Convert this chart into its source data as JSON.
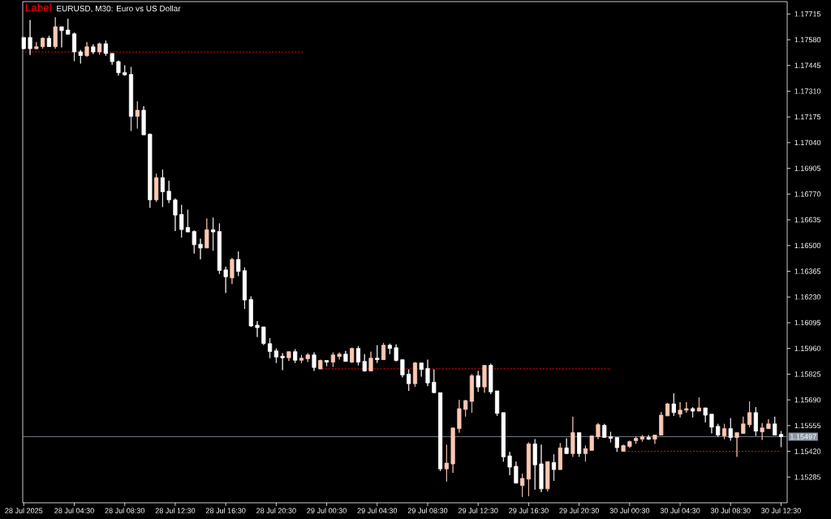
{
  "chart_data": {
    "type": "candlestick",
    "title": "EURUSD, M30: Euro vs US Dollar",
    "annotations": [
      "Label"
    ],
    "x": [
      "2025-07-28T00:30",
      "2025-07-28T01:00",
      "2025-07-28T01:30",
      "2025-07-28T02:00",
      "2025-07-28T02:30",
      "2025-07-28T03:00",
      "2025-07-28T03:30",
      "2025-07-28T04:00",
      "2025-07-28T04:30",
      "2025-07-28T05:00",
      "2025-07-28T05:30",
      "2025-07-28T06:00",
      "2025-07-28T06:30",
      "2025-07-28T07:00",
      "2025-07-28T07:30",
      "2025-07-28T08:00",
      "2025-07-28T08:30",
      "2025-07-28T09:00",
      "2025-07-28T09:30",
      "2025-07-28T10:00",
      "2025-07-28T10:30",
      "2025-07-28T11:00",
      "2025-07-28T11:30",
      "2025-07-28T12:00",
      "2025-07-28T12:30",
      "2025-07-28T13:00",
      "2025-07-28T13:30",
      "2025-07-28T14:00",
      "2025-07-28T14:30",
      "2025-07-28T15:00",
      "2025-07-28T15:30",
      "2025-07-28T16:00",
      "2025-07-28T16:30",
      "2025-07-28T17:00",
      "2025-07-28T17:30",
      "2025-07-28T18:00",
      "2025-07-28T18:30",
      "2025-07-28T19:00",
      "2025-07-28T19:30",
      "2025-07-28T20:00",
      "2025-07-28T20:30",
      "2025-07-28T21:00",
      "2025-07-28T21:30",
      "2025-07-28T22:00",
      "2025-07-28T22:30",
      "2025-07-28T23:00",
      "2025-07-28T23:30",
      "2025-07-29T00:00",
      "2025-07-29T00:30",
      "2025-07-29T01:00",
      "2025-07-29T01:30",
      "2025-07-29T02:00",
      "2025-07-29T02:30",
      "2025-07-29T03:00",
      "2025-07-29T03:30",
      "2025-07-29T04:00",
      "2025-07-29T04:30",
      "2025-07-29T05:00",
      "2025-07-29T05:30",
      "2025-07-29T06:00",
      "2025-07-29T06:30",
      "2025-07-29T07:00",
      "2025-07-29T07:30",
      "2025-07-29T08:00",
      "2025-07-29T08:30",
      "2025-07-29T09:00",
      "2025-07-29T09:30",
      "2025-07-29T10:00",
      "2025-07-29T10:30",
      "2025-07-29T11:00",
      "2025-07-29T11:30",
      "2025-07-29T12:00",
      "2025-07-29T12:30",
      "2025-07-29T13:00",
      "2025-07-29T13:30",
      "2025-07-29T14:00",
      "2025-07-29T14:30",
      "2025-07-29T15:00",
      "2025-07-29T15:30",
      "2025-07-29T16:00",
      "2025-07-29T16:30",
      "2025-07-29T17:00",
      "2025-07-29T17:30",
      "2025-07-29T18:00",
      "2025-07-29T18:30",
      "2025-07-29T19:00",
      "2025-07-29T19:30",
      "2025-07-29T20:00",
      "2025-07-29T20:30",
      "2025-07-29T21:00",
      "2025-07-29T21:30",
      "2025-07-29T22:00",
      "2025-07-29T22:30",
      "2025-07-29T23:00",
      "2025-07-29T23:30",
      "2025-07-30T00:00",
      "2025-07-30T00:30",
      "2025-07-30T01:00",
      "2025-07-30T01:30",
      "2025-07-30T02:00",
      "2025-07-30T02:30",
      "2025-07-30T03:00",
      "2025-07-30T03:30",
      "2025-07-30T04:00",
      "2025-07-30T04:30",
      "2025-07-30T05:00",
      "2025-07-30T05:30",
      "2025-07-30T06:00",
      "2025-07-30T06:30",
      "2025-07-30T07:00",
      "2025-07-30T07:30",
      "2025-07-30T08:00",
      "2025-07-30T08:30",
      "2025-07-30T09:00",
      "2025-07-30T09:30",
      "2025-07-30T10:00",
      "2025-07-30T10:30",
      "2025-07-30T11:00",
      "2025-07-30T11:30",
      "2025-07-30T12:00",
      "2025-07-30T12:30"
    ],
    "ohlc": [
      [
        1.17592,
        1.17593,
        1.1753,
        1.17533
      ],
      [
        1.17592,
        1.17683,
        1.175,
        1.17533
      ],
      [
        1.17533,
        1.17568,
        1.1753,
        1.17543
      ],
      [
        1.17544,
        1.17592,
        1.17533,
        1.17588
      ],
      [
        1.17588,
        1.17601,
        1.17544,
        1.17544
      ],
      [
        1.17544,
        1.17698,
        1.17533,
        1.17648
      ],
      [
        1.17648,
        1.17648,
        1.1754,
        1.17628
      ],
      [
        1.17631,
        1.1769,
        1.17609,
        1.17609
      ],
      [
        1.17611,
        1.17618,
        1.17468,
        1.17516
      ],
      [
        1.17516,
        1.17526,
        1.17455,
        1.17497
      ],
      [
        1.17496,
        1.17568,
        1.17491,
        1.17543
      ],
      [
        1.17543,
        1.17556,
        1.17505,
        1.17516
      ],
      [
        1.17516,
        1.17565,
        1.17502,
        1.17559
      ],
      [
        1.17559,
        1.17576,
        1.17496,
        1.17508
      ],
      [
        1.17508,
        1.17509,
        1.17449,
        1.17465
      ],
      [
        1.17465,
        1.17471,
        1.17392,
        1.17407
      ],
      [
        1.17408,
        1.17446,
        1.17391,
        1.17396
      ],
      [
        1.17398,
        1.17437,
        1.17102,
        1.17178
      ],
      [
        1.17178,
        1.17256,
        1.17114,
        1.1721
      ],
      [
        1.1721,
        1.17231,
        1.17081,
        1.17081
      ],
      [
        1.17084,
        1.17088,
        1.16698,
        1.1674
      ],
      [
        1.1674,
        1.16877,
        1.16729,
        1.16856
      ],
      [
        1.16856,
        1.16898,
        1.16702,
        1.16782
      ],
      [
        1.16785,
        1.1684,
        1.16723,
        1.1674
      ],
      [
        1.16739,
        1.16747,
        1.16576,
        1.1666
      ],
      [
        1.16663,
        1.16713,
        1.16542,
        1.16584
      ],
      [
        1.16595,
        1.16688,
        1.16571,
        1.16571
      ],
      [
        1.16574,
        1.16579,
        1.16458,
        1.16504
      ],
      [
        1.16507,
        1.16536,
        1.16428,
        1.16487
      ],
      [
        1.16487,
        1.16642,
        1.16487,
        1.16583
      ],
      [
        1.16583,
        1.16646,
        1.16473,
        1.16571
      ],
      [
        1.16574,
        1.16616,
        1.16351,
        1.16369
      ],
      [
        1.16372,
        1.16389,
        1.16251,
        1.16336
      ],
      [
        1.1633,
        1.16435,
        1.16298,
        1.16427
      ],
      [
        1.16427,
        1.16469,
        1.1634,
        1.16364
      ],
      [
        1.16368,
        1.16385,
        1.16167,
        1.16214
      ],
      [
        1.16217,
        1.16233,
        1.16073,
        1.16078
      ],
      [
        1.16082,
        1.16103,
        1.1602,
        1.16069
      ],
      [
        1.16073,
        1.16073,
        1.15978,
        1.15986
      ],
      [
        1.15985,
        1.16014,
        1.15909,
        1.15944
      ],
      [
        1.15947,
        1.1596,
        1.15884,
        1.15915
      ],
      [
        1.15919,
        1.15935,
        1.15846,
        1.15911
      ],
      [
        1.15911,
        1.15943,
        1.15894,
        1.15943
      ],
      [
        1.15943,
        1.15956,
        1.15884,
        1.15898
      ],
      [
        1.15898,
        1.15926,
        1.15884,
        1.15909
      ],
      [
        1.15906,
        1.15935,
        1.15889,
        1.15926
      ],
      [
        1.15926,
        1.15939,
        1.15842,
        1.1586
      ],
      [
        1.15852,
        1.15901,
        1.15852,
        1.15897
      ],
      [
        1.15897,
        1.15897,
        1.15867,
        1.15888
      ],
      [
        1.15888,
        1.15939,
        1.15863,
        1.15926
      ],
      [
        1.15918,
        1.15939,
        1.15902,
        1.1593
      ],
      [
        1.1593,
        1.15947,
        1.15892,
        1.15892
      ],
      [
        1.15888,
        1.15964,
        1.15884,
        1.1596
      ],
      [
        1.1596,
        1.15972,
        1.15871,
        1.15888
      ],
      [
        1.15892,
        1.1593,
        1.15838,
        1.15842
      ],
      [
        1.15842,
        1.15943,
        1.15842,
        1.15909
      ],
      [
        1.15909,
        1.15977,
        1.15884,
        1.15901
      ],
      [
        1.15901,
        1.15989,
        1.15901,
        1.15977
      ],
      [
        1.15977,
        1.15985,
        1.1593,
        1.1596
      ],
      [
        1.15964,
        1.15981,
        1.15892,
        1.15897
      ],
      [
        1.15901,
        1.15901,
        1.15808,
        1.15821
      ],
      [
        1.15825,
        1.1585,
        1.15737,
        1.15775
      ],
      [
        1.15775,
        1.15888,
        1.15758,
        1.15884
      ],
      [
        1.15884,
        1.15884,
        1.15812,
        1.1585
      ],
      [
        1.15855,
        1.15901,
        1.15762,
        1.15779
      ],
      [
        1.15783,
        1.1585,
        1.15724,
        1.15728
      ],
      [
        1.15728,
        1.15728,
        1.15316,
        1.15328
      ],
      [
        1.15328,
        1.15455,
        1.15261,
        1.15358
      ],
      [
        1.15354,
        1.15543,
        1.15307,
        1.15543
      ],
      [
        1.15539,
        1.1569,
        1.15518,
        1.15644
      ],
      [
        1.1564,
        1.1569,
        1.15602,
        1.15686
      ],
      [
        1.15682,
        1.15825,
        1.15623,
        1.15817
      ],
      [
        1.15817,
        1.15842,
        1.15732,
        1.15758
      ],
      [
        1.15758,
        1.15871,
        1.15728,
        1.15871
      ],
      [
        1.15871,
        1.1588,
        1.1572,
        1.15732
      ],
      [
        1.15737,
        1.15737,
        1.15606,
        1.15619
      ],
      [
        1.15623,
        1.15623,
        1.15366,
        1.15391
      ],
      [
        1.15396,
        1.15417,
        1.15295,
        1.15337
      ],
      [
        1.15341,
        1.15366,
        1.15253,
        1.15253
      ],
      [
        1.1524,
        1.15303,
        1.15181,
        1.15278
      ],
      [
        1.15274,
        1.15467,
        1.15185,
        1.15459
      ],
      [
        1.15459,
        1.15484,
        1.15219,
        1.15349
      ],
      [
        1.15354,
        1.15455,
        1.15206,
        1.15223
      ],
      [
        1.15223,
        1.15366,
        1.1521,
        1.15366
      ],
      [
        1.15362,
        1.15404,
        1.15265,
        1.15324
      ],
      [
        1.15324,
        1.15463,
        1.15324,
        1.15438
      ],
      [
        1.15438,
        1.15488,
        1.15408,
        1.15408
      ],
      [
        1.15408,
        1.15602,
        1.15391,
        1.15518
      ],
      [
        1.15518,
        1.15518,
        1.15391,
        1.15408
      ],
      [
        1.15408,
        1.1545,
        1.15366,
        1.15434
      ],
      [
        1.15425,
        1.15501,
        1.15425,
        1.15501
      ],
      [
        1.15497,
        1.15568,
        1.15484,
        1.1556
      ],
      [
        1.15556,
        1.15564,
        1.15493,
        1.15493
      ],
      [
        1.15497,
        1.15522,
        1.15467,
        1.15488
      ],
      [
        1.15493,
        1.15493,
        1.15417,
        1.15439
      ],
      [
        1.1542,
        1.15455,
        1.1542,
        1.1545
      ],
      [
        1.15446,
        1.15476,
        1.15438,
        1.15471
      ],
      [
        1.15476,
        1.15498,
        1.15459,
        1.15488
      ],
      [
        1.15484,
        1.15505,
        1.15471,
        1.15497
      ],
      [
        1.15493,
        1.15505,
        1.1548,
        1.15484
      ],
      [
        1.15484,
        1.15505,
        1.15459,
        1.15505
      ],
      [
        1.15505,
        1.15627,
        1.15505,
        1.1561
      ],
      [
        1.15606,
        1.15674,
        1.15606,
        1.15669
      ],
      [
        1.15669,
        1.15724,
        1.15606,
        1.15623
      ],
      [
        1.15615,
        1.15678,
        1.15598,
        1.15636
      ],
      [
        1.15636,
        1.15678,
        1.15623,
        1.15644
      ],
      [
        1.15644,
        1.15652,
        1.15598,
        1.15631
      ],
      [
        1.15631,
        1.15703,
        1.15631,
        1.15648
      ],
      [
        1.15648,
        1.15648,
        1.15572,
        1.1561
      ],
      [
        1.15615,
        1.15615,
        1.15514,
        1.15547
      ],
      [
        1.15551,
        1.15564,
        1.15497,
        1.15505
      ],
      [
        1.15501,
        1.15564,
        1.15484,
        1.15539
      ],
      [
        1.15539,
        1.15594,
        1.15476,
        1.15493
      ],
      [
        1.15493,
        1.15518,
        1.15391,
        1.15518
      ],
      [
        1.15514,
        1.15602,
        1.15514,
        1.15564
      ],
      [
        1.1556,
        1.15682,
        1.15547,
        1.15623
      ],
      [
        1.15623,
        1.15652,
        1.15501,
        1.15526
      ],
      [
        1.15522,
        1.15568,
        1.1548,
        1.15543
      ],
      [
        1.15539,
        1.15589,
        1.15539,
        1.15564
      ],
      [
        1.15564,
        1.15602,
        1.15505,
        1.15505
      ],
      [
        1.15509,
        1.15526,
        1.15442,
        1.15497
      ]
    ],
    "colors": [
      "#ffffff",
      "#ffffff",
      "#fbc8b4",
      "#fbc8b4",
      "#ffffff",
      "#fbc8b4",
      "#ffffff",
      "#ffffff",
      "#ffffff",
      "#ffffff",
      "#fbc8b4",
      "#ffffff",
      "#fbc8b4",
      "#ffffff",
      "#ffffff",
      "#ffffff",
      "#ffffff",
      "#ffffff",
      "#fbc8b4",
      "#ffffff",
      "#ffffff",
      "#fbc8b4",
      "#ffffff",
      "#ffffff",
      "#ffffff",
      "#ffffff",
      "#ffffff",
      "#ffffff",
      "#ffffff",
      "#fbc8b4",
      "#ffffff",
      "#ffffff",
      "#ffffff",
      "#fbc8b4",
      "#ffffff",
      "#ffffff",
      "#ffffff",
      "#ffffff",
      "#ffffff",
      "#ffffff",
      "#ffffff",
      "#ffffff",
      "#fbc8b4",
      "#ffffff",
      "#fbc8b4",
      "#fbc8b4",
      "#ffffff",
      "#fbc8b4",
      "#ffffff",
      "#fbc8b4",
      "#fbc8b4",
      "#ffffff",
      "#fbc8b4",
      "#ffffff",
      "#ffffff",
      "#fbc8b4",
      "#ffffff",
      "#fbc8b4",
      "#ffffff",
      "#ffffff",
      "#ffffff",
      "#ffffff",
      "#fbc8b4",
      "#ffffff",
      "#ffffff",
      "#ffffff",
      "#ffffff",
      "#fbc8b4",
      "#fbc8b4",
      "#fbc8b4",
      "#fbc8b4",
      "#fbc8b4",
      "#ffffff",
      "#fbc8b4",
      "#ffffff",
      "#ffffff",
      "#ffffff",
      "#ffffff",
      "#ffffff",
      "#fbc8b4",
      "#fbc8b4",
      "#ffffff",
      "#ffffff",
      "#fbc8b4",
      "#ffffff",
      "#fbc8b4",
      "#ffffff",
      "#fbc8b4",
      "#ffffff",
      "#fbc8b4",
      "#fbc8b4",
      "#fbc8b4",
      "#ffffff",
      "#ffffff",
      "#ffffff",
      "#fbc8b4",
      "#fbc8b4",
      "#fbc8b4",
      "#fbc8b4",
      "#ffffff",
      "#fbc8b4",
      "#fbc8b4",
      "#fbc8b4",
      "#ffffff",
      "#fbc8b4",
      "#fbc8b4",
      "#ffffff",
      "#fbc8b4",
      "#ffffff",
      "#ffffff",
      "#ffffff",
      "#fbc8b4",
      "#ffffff",
      "#fbc8b4",
      "#fbc8b4",
      "#fbc8b4",
      "#ffffff",
      "#fbc8b4",
      "#fbc8b4",
      "#ffffff",
      "#ffffff"
    ],
    "xlim": [
      "2025-07-28T00:25",
      "2025-07-30T12:59"
    ],
    "xticks": [
      {
        "value": "2025-07-28T00:30",
        "label": "28 Jul 2025"
      },
      {
        "value": "2025-07-28T04:30",
        "label": "28 Jul 04:30"
      },
      {
        "value": "2025-07-28T08:30",
        "label": "28 Jul 08:30"
      },
      {
        "value": "2025-07-28T12:30",
        "label": "28 Jul 12:30"
      },
      {
        "value": "2025-07-28T16:30",
        "label": "28 Jul 16:30"
      },
      {
        "value": "2025-07-28T20:30",
        "label": "28 Jul 20:30"
      },
      {
        "value": "2025-07-29T00:30",
        "label": "29 Jul 00:30"
      },
      {
        "value": "2025-07-29T04:30",
        "label": "29 Jul 04:30"
      },
      {
        "value": "2025-07-29T08:30",
        "label": "29 Jul 08:30"
      },
      {
        "value": "2025-07-29T12:30",
        "label": "29 Jul 12:30"
      },
      {
        "value": "2025-07-29T16:30",
        "label": "29 Jul 16:30"
      },
      {
        "value": "2025-07-29T20:30",
        "label": "29 Jul 20:30"
      },
      {
        "value": "2025-07-30T00:30",
        "label": "30 Jul 00:30"
      },
      {
        "value": "2025-07-30T04:30",
        "label": "30 Jul 04:30"
      },
      {
        "value": "2025-07-30T08:30",
        "label": "30 Jul 08:30"
      },
      {
        "value": "2025-07-30T12:30",
        "label": "30 Jul 12:30"
      }
    ],
    "ylim": [
      1.1515,
      1.1778
    ],
    "yticks": [
      1.17715,
      {
        "value": 1.1758,
        "label": "1.17580"
      },
      1.17445,
      {
        "value": 1.1731,
        "label": "1.17310"
      },
      1.17175,
      {
        "value": 1.1704,
        "label": "1.17040"
      },
      1.16905,
      {
        "value": 1.1677,
        "label": "1.16770"
      },
      1.16635,
      {
        "value": 1.165,
        "label": "1.16500"
      },
      1.16365,
      {
        "value": 1.1623,
        "label": "1.16230"
      },
      1.16095,
      {
        "value": 1.1596,
        "label": "1.15960"
      },
      1.15825,
      {
        "value": 1.1569,
        "label": "1.15690"
      },
      1.15555,
      {
        "value": 1.1542,
        "label": "1.15420"
      },
      1.15285
    ],
    "series": [
      {
        "type": "line",
        "x": [
          "2025-07-28T00:30",
          "2025-07-28T22:45"
        ],
        "values": [
          1.17516,
          1.17516
        ],
        "color": "#ff0000",
        "line_style": "dashed"
      },
      {
        "type": "line",
        "x": [
          "2025-07-29T00:00",
          "2025-07-29T23:00"
        ],
        "values": [
          1.15853,
          1.15853
        ],
        "color": "#ff0000",
        "line_style": "dashed"
      },
      {
        "type": "line",
        "x": [
          "2025-07-30T00:00",
          "2025-07-30T12:30"
        ],
        "values": [
          1.1542,
          1.1542
        ],
        "color": "#ff0000",
        "line_style": "dashed"
      }
    ],
    "ref_lines": [
      {
        "axis": "y",
        "value": 1.15497,
        "label": "1.15497",
        "color": "#8a94a6"
      }
    ]
  }
}
